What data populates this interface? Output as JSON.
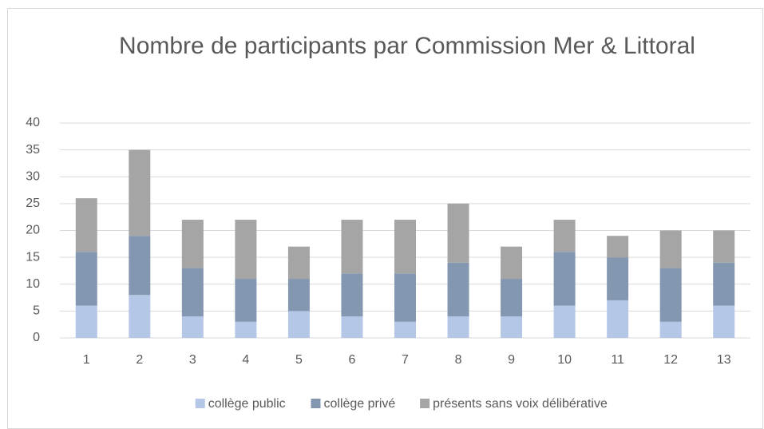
{
  "chart_data": {
    "type": "bar",
    "stacked": true,
    "title": "Nombre de participants par Commission Mer & Littoral",
    "categories": [
      "1",
      "2",
      "3",
      "4",
      "5",
      "6",
      "7",
      "8",
      "9",
      "10",
      "11",
      "12",
      "13"
    ],
    "series": [
      {
        "name": "collège public",
        "color": "#b4c7e7",
        "values": [
          6,
          8,
          4,
          3,
          5,
          4,
          3,
          4,
          4,
          6,
          7,
          3,
          6
        ]
      },
      {
        "name": "collège privé",
        "color": "#8497b0",
        "values": [
          10,
          11,
          9,
          8,
          6,
          8,
          9,
          10,
          7,
          10,
          8,
          10,
          8
        ]
      },
      {
        "name": "présents sans voix délibérative",
        "color": "#a5a5a5",
        "values": [
          10,
          16,
          9,
          11,
          6,
          10,
          10,
          11,
          6,
          6,
          4,
          7,
          6
        ]
      }
    ],
    "ylim": [
      0,
      40
    ],
    "yticks": [
      0,
      5,
      10,
      15,
      20,
      25,
      30,
      35,
      40
    ],
    "grid": true,
    "legend": "bottom"
  }
}
